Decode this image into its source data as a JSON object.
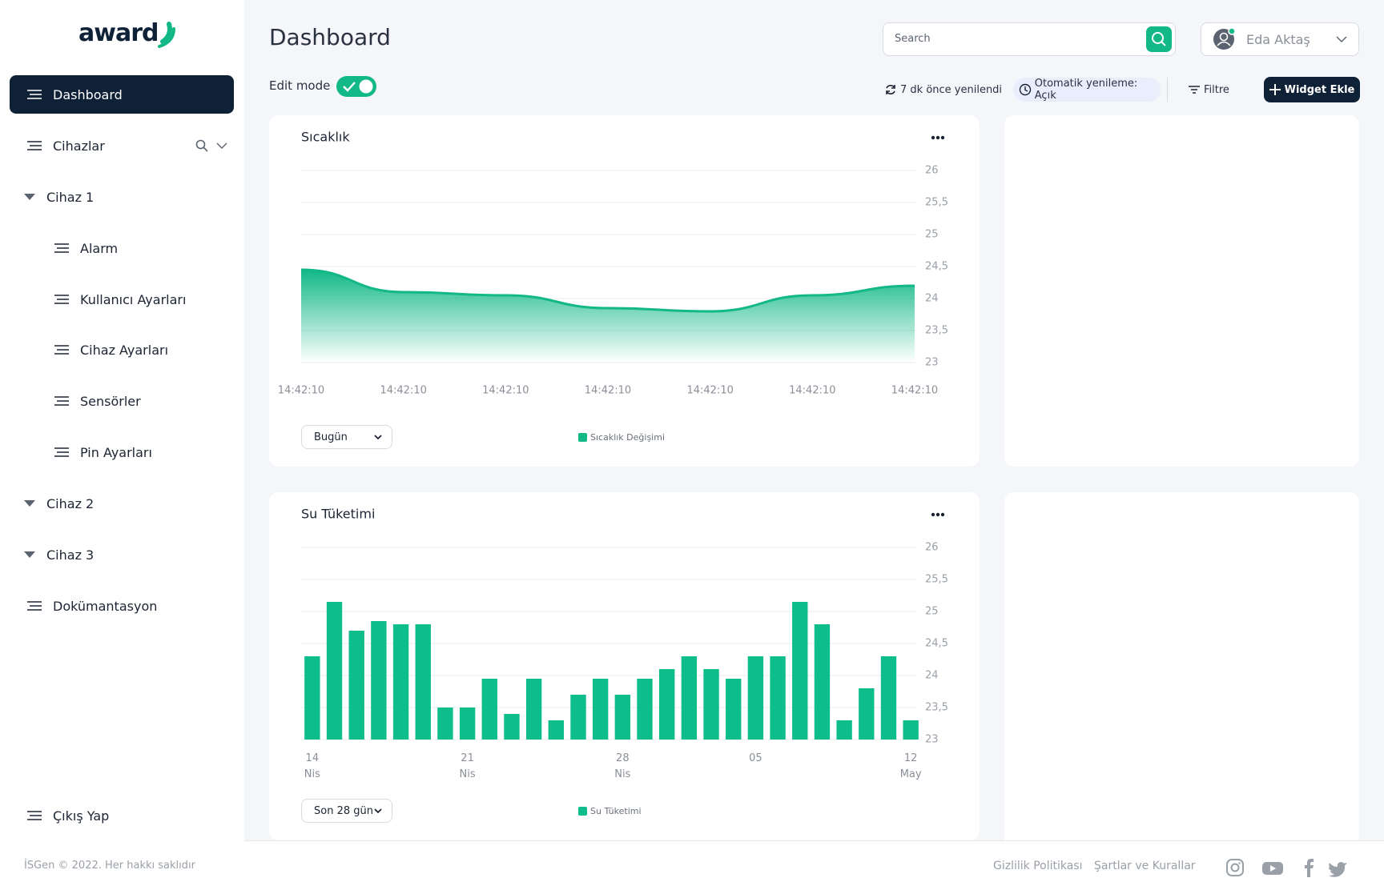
{
  "sidebar": {
    "logo": "award",
    "nav": [
      "Dashboard",
      "Cihazlar",
      "Cihaz 1",
      "Alarm",
      "Kullanıcı Ayarları",
      "Cihaz Ayarları",
      "Sensörler",
      "Pin Ayarları",
      "Cihaz 2",
      "Cihaz 3",
      "Dokümantasyon"
    ],
    "logout": "Çıkış Yap",
    "copyright": "İSGen © 2022. Her hakkı saklıdır"
  },
  "header": {
    "title": "Dashboard",
    "search_placeholder": "Search",
    "user": "Eda Aktaş",
    "edit_mode": "Edit mode",
    "refreshed": "7 dk önce yenilendi",
    "auto_refresh": "Otomatik yenileme: Açık",
    "filter": "Filtre",
    "add_widget": "Widget Ekle"
  },
  "chart_data": [
    {
      "type": "area",
      "title": "Sıcaklık",
      "dropdown": "Bugün",
      "categories": [
        "14:42:10",
        "14:42:10",
        "14:42:10",
        "14:42:10",
        "14:42:10",
        "14:42:10",
        "14:42:10"
      ],
      "series": [
        {
          "name": "Sıcaklık Değişimi",
          "color": "#12b886",
          "values": [
            24.45,
            24.1,
            24.05,
            23.85,
            23.8,
            24.05,
            24.2
          ]
        }
      ],
      "ylim": [
        23,
        26
      ],
      "yticks": [
        26,
        {
          "value": 25.5,
          "label": "25,5"
        },
        25,
        {
          "value": 24.5,
          "label": "24,5"
        },
        24,
        {
          "value": 23.5,
          "label": "23,5"
        },
        23
      ],
      "grid": true
    },
    {
      "type": "bar",
      "title": "Su Tüketimi",
      "dropdown": "Son 28 gün",
      "categories": [
        "14\nNis",
        null,
        null,
        null,
        null,
        null,
        null,
        "21\nNis",
        null,
        null,
        null,
        null,
        null,
        null,
        "28\nNis",
        null,
        null,
        null,
        null,
        null,
        "05",
        null,
        null,
        null,
        null,
        null,
        null,
        "12\nMay"
      ],
      "series": [
        {
          "name": "Su Tüketimi",
          "color": "#0dbd8b",
          "values": [
            24.3,
            25.15,
            24.7,
            24.85,
            24.8,
            24.8,
            23.5,
            23.5,
            23.95,
            23.4,
            23.95,
            23.3,
            23.7,
            23.95,
            23.7,
            23.95,
            24.1,
            24.3,
            24.1,
            23.95,
            24.3,
            24.3,
            25.15,
            24.8,
            23.3,
            23.8,
            24.3,
            23.3
          ]
        }
      ],
      "ylim": [
        23,
        26
      ],
      "yticks": [
        26,
        {
          "value": 25.5,
          "label": "25,5"
        },
        25,
        {
          "value": 24.5,
          "label": "24,5"
        },
        24,
        {
          "value": 23.5,
          "label": "23,5"
        },
        23
      ],
      "grid": true
    }
  ],
  "footer": {
    "links": [
      "Gizlilik Politikası",
      "Şartlar ve Kurallar"
    ]
  }
}
